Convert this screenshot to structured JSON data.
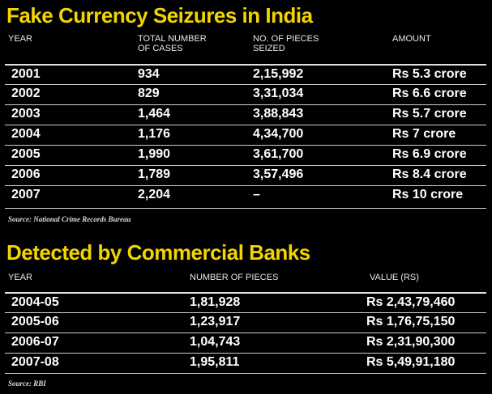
{
  "seizures": {
    "title": "Fake Currency Seizures in India",
    "headers": [
      "YEAR",
      "TOTAL NUMBER\nOF CASES",
      "NO. OF PIECES\nSEIZED",
      "AMOUNT"
    ],
    "rows": [
      [
        "2001",
        "934",
        "2,15,992",
        "Rs 5.3 crore"
      ],
      [
        "2002",
        "829",
        "3,31,034",
        "Rs 6.6 crore"
      ],
      [
        "2003",
        "1,464",
        "3,88,843",
        "Rs 5.7 crore"
      ],
      [
        "2004",
        "1,176",
        "4,34,700",
        "Rs 7 crore"
      ],
      [
        "2005",
        "1,990",
        "3,61,700",
        "Rs 6.9 crore"
      ],
      [
        "2006",
        "1,789",
        "3,57,496",
        "Rs 8.4 crore"
      ],
      [
        "2007",
        "2,204",
        "–",
        "Rs 10 crore"
      ]
    ],
    "source": "Source: National Crime Records Bureau"
  },
  "banks": {
    "title": "Detected by Commercial Banks",
    "headers": [
      "YEAR",
      "NUMBER OF PIECES",
      "VALUE (RS)"
    ],
    "rows": [
      [
        "2004-05",
        "1,81,928",
        "Rs 2,43,79,460"
      ],
      [
        "2005-06",
        "1,23,917",
        "Rs 1,76,75,150"
      ],
      [
        "2006-07",
        "1,04,743",
        "Rs 2,31,90,300"
      ],
      [
        "2007-08",
        "1,95,811",
        "Rs 5,49,91,180"
      ]
    ],
    "source": "Source: RBI"
  },
  "colors": {
    "title": "#f2d400",
    "background": "#000000",
    "text": "#ffffff"
  }
}
